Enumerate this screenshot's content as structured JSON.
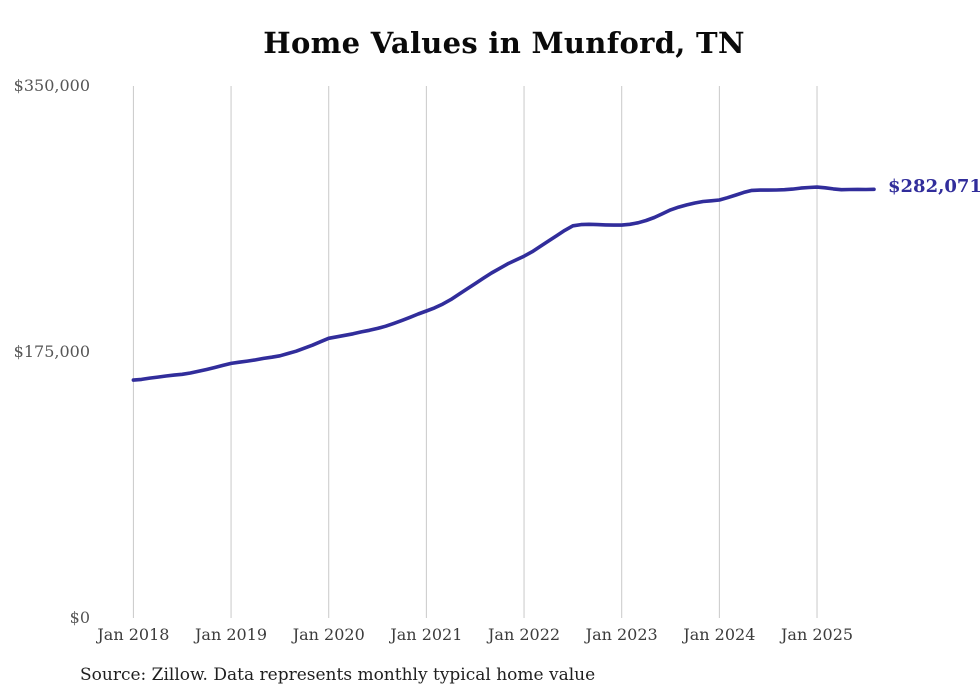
{
  "source_note": "Source: Zillow. Data represents monthly typical home value",
  "colors": {
    "line": "#312d9b",
    "grid": "#c9c9c9",
    "y_tick_text": "#565656",
    "x_tick_text": "#3c3c3c",
    "title_text": "#0a0a0a",
    "source_text": "#1f1f1f"
  },
  "chart_data": {
    "type": "line",
    "title": "Home Values in Munford, TN",
    "xlabel": "",
    "ylabel": "",
    "x_unit": "month",
    "x_start": "2018-01",
    "x_end": "2025-08",
    "x_tick_labels": [
      "Jan 2018",
      "Jan 2019",
      "Jan 2020",
      "Jan 2021",
      "Jan 2022",
      "Jan 2023",
      "Jan 2024",
      "Jan 2025"
    ],
    "x_tick_month_indices": [
      0,
      12,
      24,
      36,
      48,
      60,
      72,
      84
    ],
    "y_ticks": [
      {
        "label": "$0",
        "value": 0
      },
      {
        "label": "$175,000",
        "value": 175000
      },
      {
        "label": "$350,000",
        "value": 350000
      }
    ],
    "ylim": [
      0,
      350000
    ],
    "grid": "vertical-only",
    "legend": "none",
    "series": [
      {
        "name": "Monthly typical home value (USD)",
        "color": "#312d9b",
        "values": [
          156500,
          157000,
          157800,
          158500,
          159200,
          159800,
          160300,
          161200,
          162300,
          163500,
          164800,
          166200,
          167500,
          168300,
          169000,
          169800,
          170800,
          171600,
          172500,
          174000,
          175500,
          177500,
          179500,
          181800,
          184000,
          185000,
          186000,
          187000,
          188200,
          189300,
          190500,
          192000,
          193800,
          195800,
          197800,
          200000,
          202000,
          204000,
          206500,
          209500,
          213000,
          216500,
          220000,
          223500,
          227000,
          230000,
          233000,
          235500,
          238000,
          241000,
          244500,
          248000,
          251500,
          255000,
          258000,
          258800,
          259000,
          258800,
          258600,
          258500,
          258500,
          259000,
          260000,
          261500,
          263500,
          266000,
          268500,
          270300,
          271800,
          273000,
          274000,
          274500,
          275000,
          276500,
          278200,
          280000,
          281300,
          281500,
          281500,
          281600,
          281800,
          282200,
          282800,
          283200,
          283500,
          283000,
          282300,
          281800,
          281900,
          282000,
          281900,
          282071
        ],
        "final_value": 282071,
        "final_value_label": "$282,071"
      }
    ]
  }
}
